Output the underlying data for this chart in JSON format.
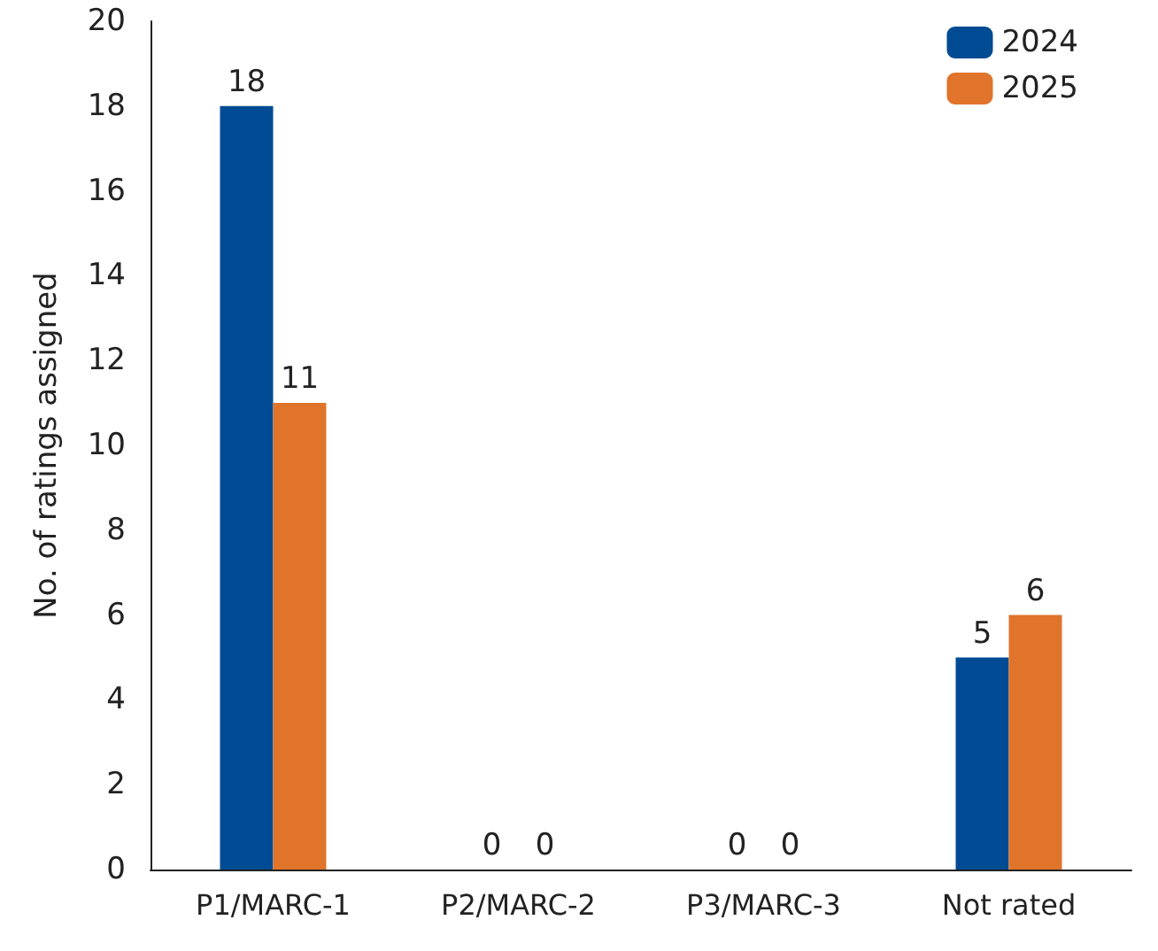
{
  "chart_data": {
    "type": "bar",
    "ylabel": "No. of ratings assigned",
    "categories": [
      "P1/MARC-1",
      "P2/MARC-2",
      "P3/MARC-3",
      "Not rated"
    ],
    "series": [
      {
        "name": "2024",
        "color": "#004b93",
        "values": [
          18,
          0,
          0,
          5
        ]
      },
      {
        "name": "2025",
        "color": "#e0742b",
        "values": [
          11,
          0,
          0,
          6
        ]
      }
    ],
    "ylim": [
      0,
      20
    ],
    "yticks": [
      0,
      2,
      4,
      6,
      8,
      10,
      12,
      14,
      16,
      18,
      20
    ],
    "grid": false,
    "legend": "top right",
    "data_labels": true
  }
}
